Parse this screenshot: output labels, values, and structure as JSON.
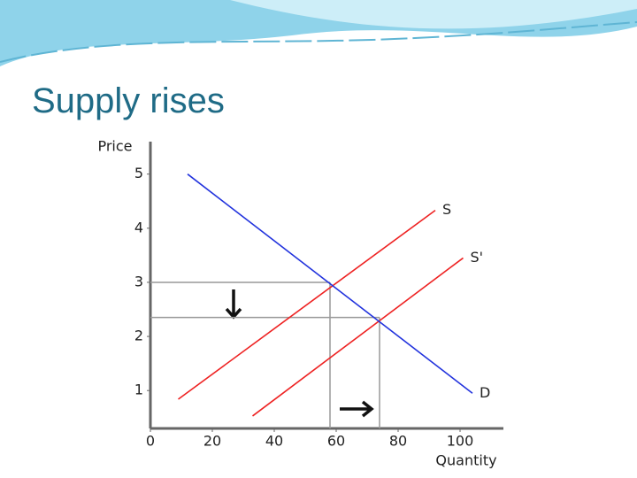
{
  "slide_title": "Supply rises",
  "chart_data": {
    "type": "line",
    "x_label": "Quantity",
    "y_label": "Price",
    "xlim": [
      0,
      114
    ],
    "ylim": [
      0.3,
      5.6
    ],
    "xticks": [
      0,
      20,
      40,
      60,
      80,
      100
    ],
    "yticks": [
      1,
      2,
      3,
      4,
      5
    ],
    "series": [
      {
        "name": "S",
        "color": "#ee2222",
        "x": [
          9,
          92
        ],
        "values": [
          0.84,
          4.33
        ]
      },
      {
        "name": "S'",
        "color": "#ee2222",
        "x": [
          33,
          101
        ],
        "values": [
          0.53,
          3.45
        ]
      },
      {
        "name": "D",
        "color": "#2233dd",
        "x": [
          12,
          104
        ],
        "values": [
          5.0,
          0.95
        ]
      }
    ],
    "equilibria": [
      {
        "x": 58,
        "y": 3.0
      },
      {
        "x": 74,
        "y": 2.35
      }
    ]
  }
}
